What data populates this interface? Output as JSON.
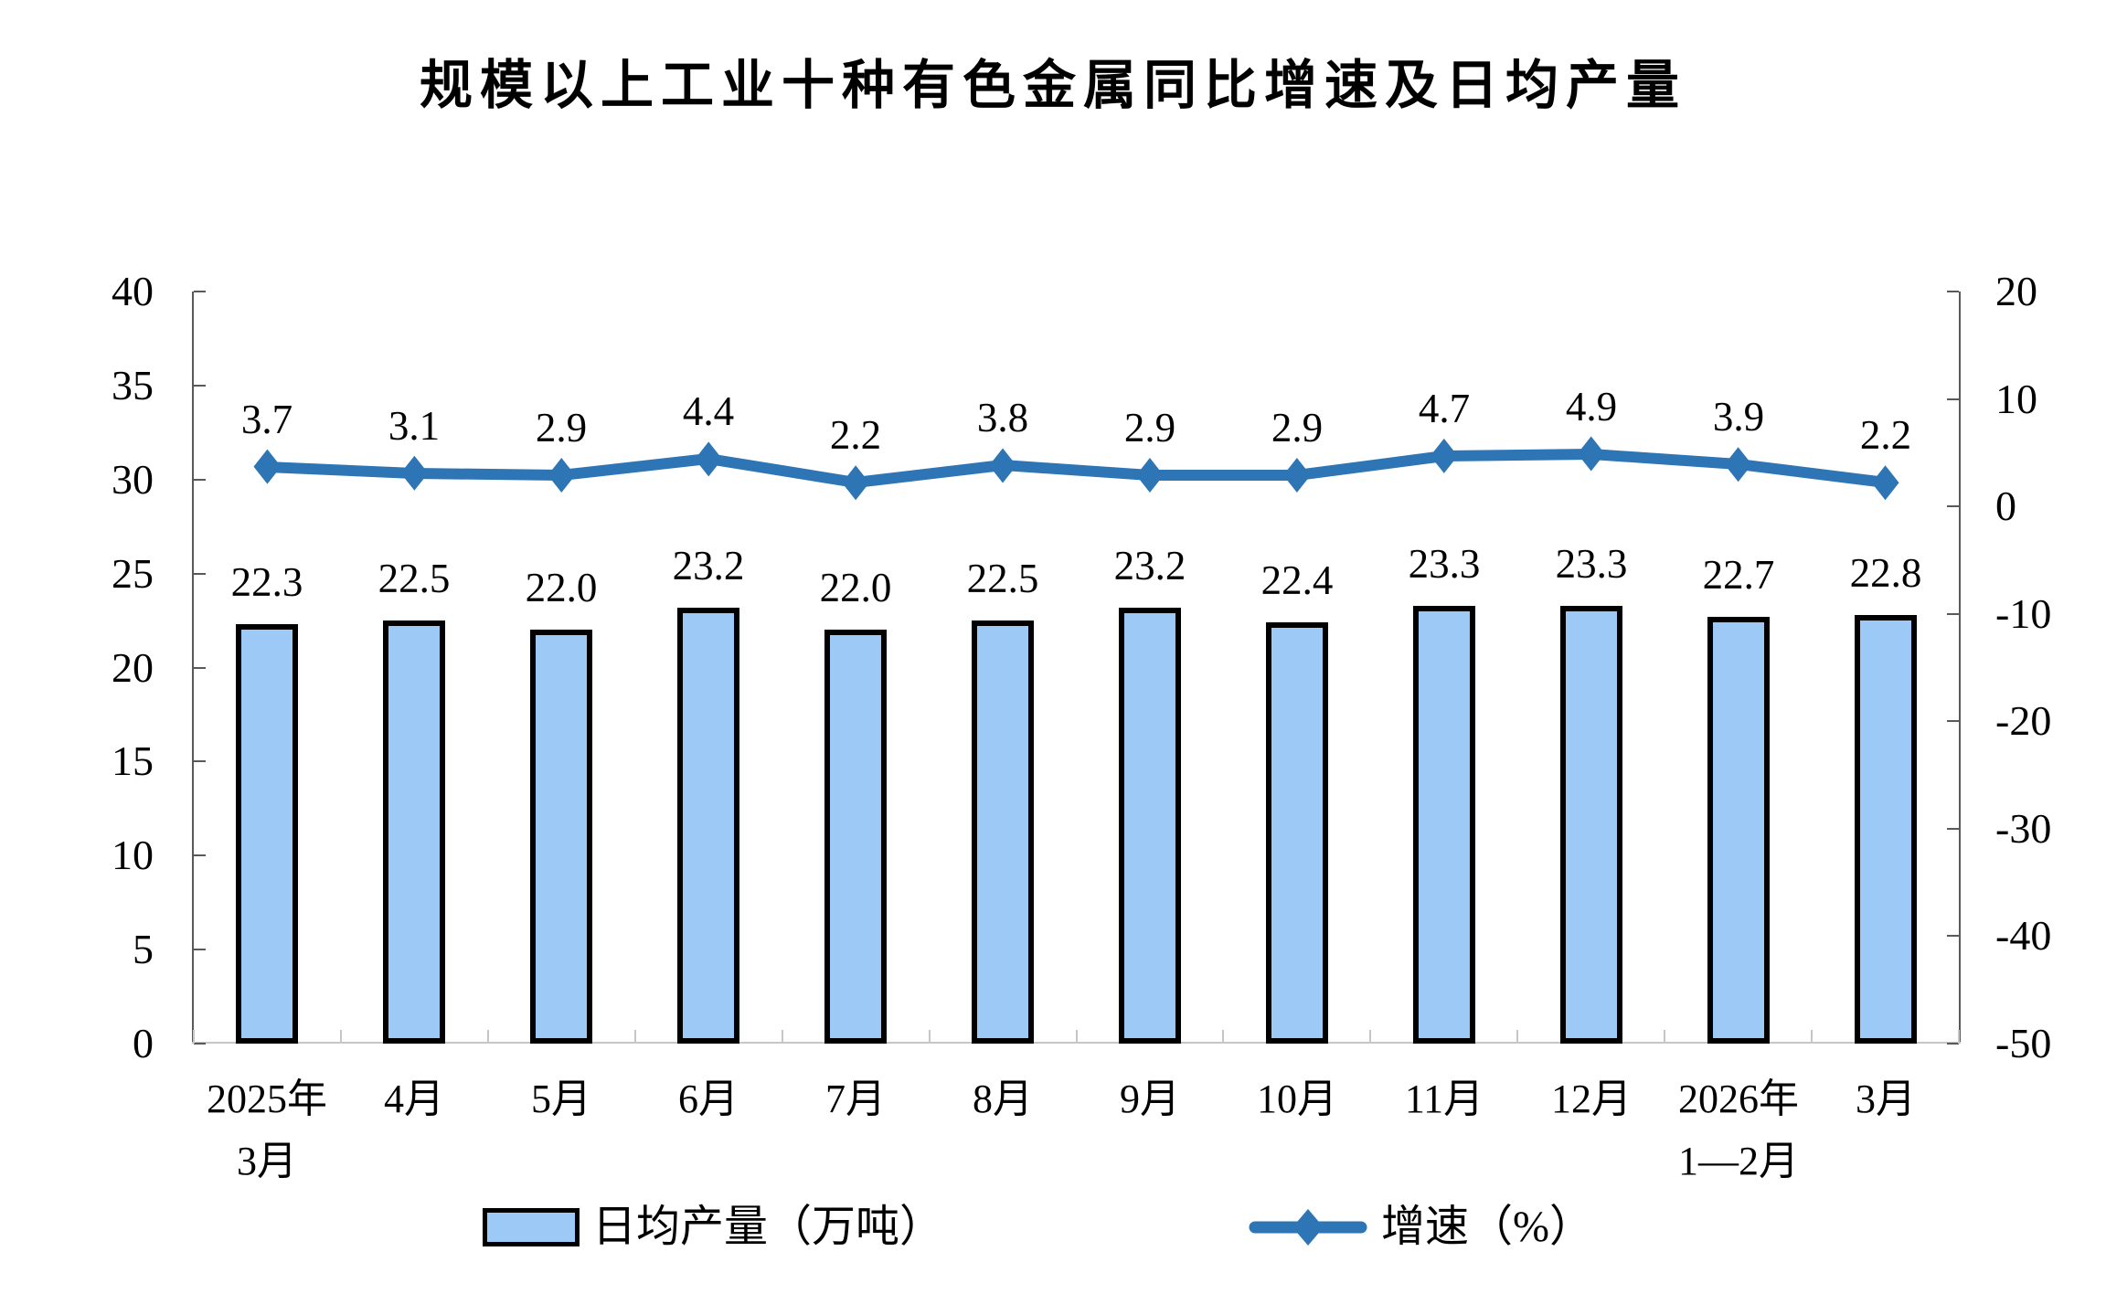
{
  "title": "规模以上工业十种有色金属同比增速及日均产量",
  "chart_data": {
    "type": "bar+line dual-axis combo",
    "background": "#FFFFFF",
    "grid": false,
    "legend_position": "bottom",
    "categories": [
      [
        "2025年",
        "3月"
      ],
      [
        "4月"
      ],
      [
        "5月"
      ],
      [
        "6月"
      ],
      [
        "7月"
      ],
      [
        "8月"
      ],
      [
        "9月"
      ],
      [
        "10月"
      ],
      [
        "11月"
      ],
      [
        "12月"
      ],
      [
        "2026年",
        "1—2月"
      ],
      [
        "3月"
      ]
    ],
    "series": [
      {
        "name": "日均产量（万吨）",
        "type": "bar",
        "axis": "left",
        "values": [
          22.3,
          22.5,
          22.0,
          23.2,
          22.0,
          22.5,
          23.2,
          22.4,
          23.3,
          23.3,
          22.7,
          22.8
        ],
        "fill": "#9CC9F6",
        "border": "#000000"
      },
      {
        "name": "增速（%）",
        "type": "line",
        "axis": "right",
        "marker": "diamond",
        "values": [
          3.7,
          3.1,
          2.9,
          4.4,
          2.2,
          3.8,
          2.9,
          2.9,
          4.7,
          4.9,
          3.9,
          2.2
        ],
        "color": "#2E75B6"
      }
    ],
    "left_axis": {
      "min": 0,
      "max": 40,
      "step": 5,
      "ticks": [
        0,
        5,
        10,
        15,
        20,
        25,
        30,
        35,
        40
      ]
    },
    "right_axis": {
      "min": -50,
      "max": 20,
      "step": 10,
      "ticks": [
        -50,
        -40,
        -30,
        -20,
        -10,
        0,
        10,
        20
      ]
    }
  },
  "colors": {
    "bar_fill": "#9CC9F6",
    "bar_border": "#000000",
    "line": "#2E75B6",
    "axis_side": "#595959",
    "axis_bottom": "#C6C6C6",
    "text": "#000000"
  }
}
